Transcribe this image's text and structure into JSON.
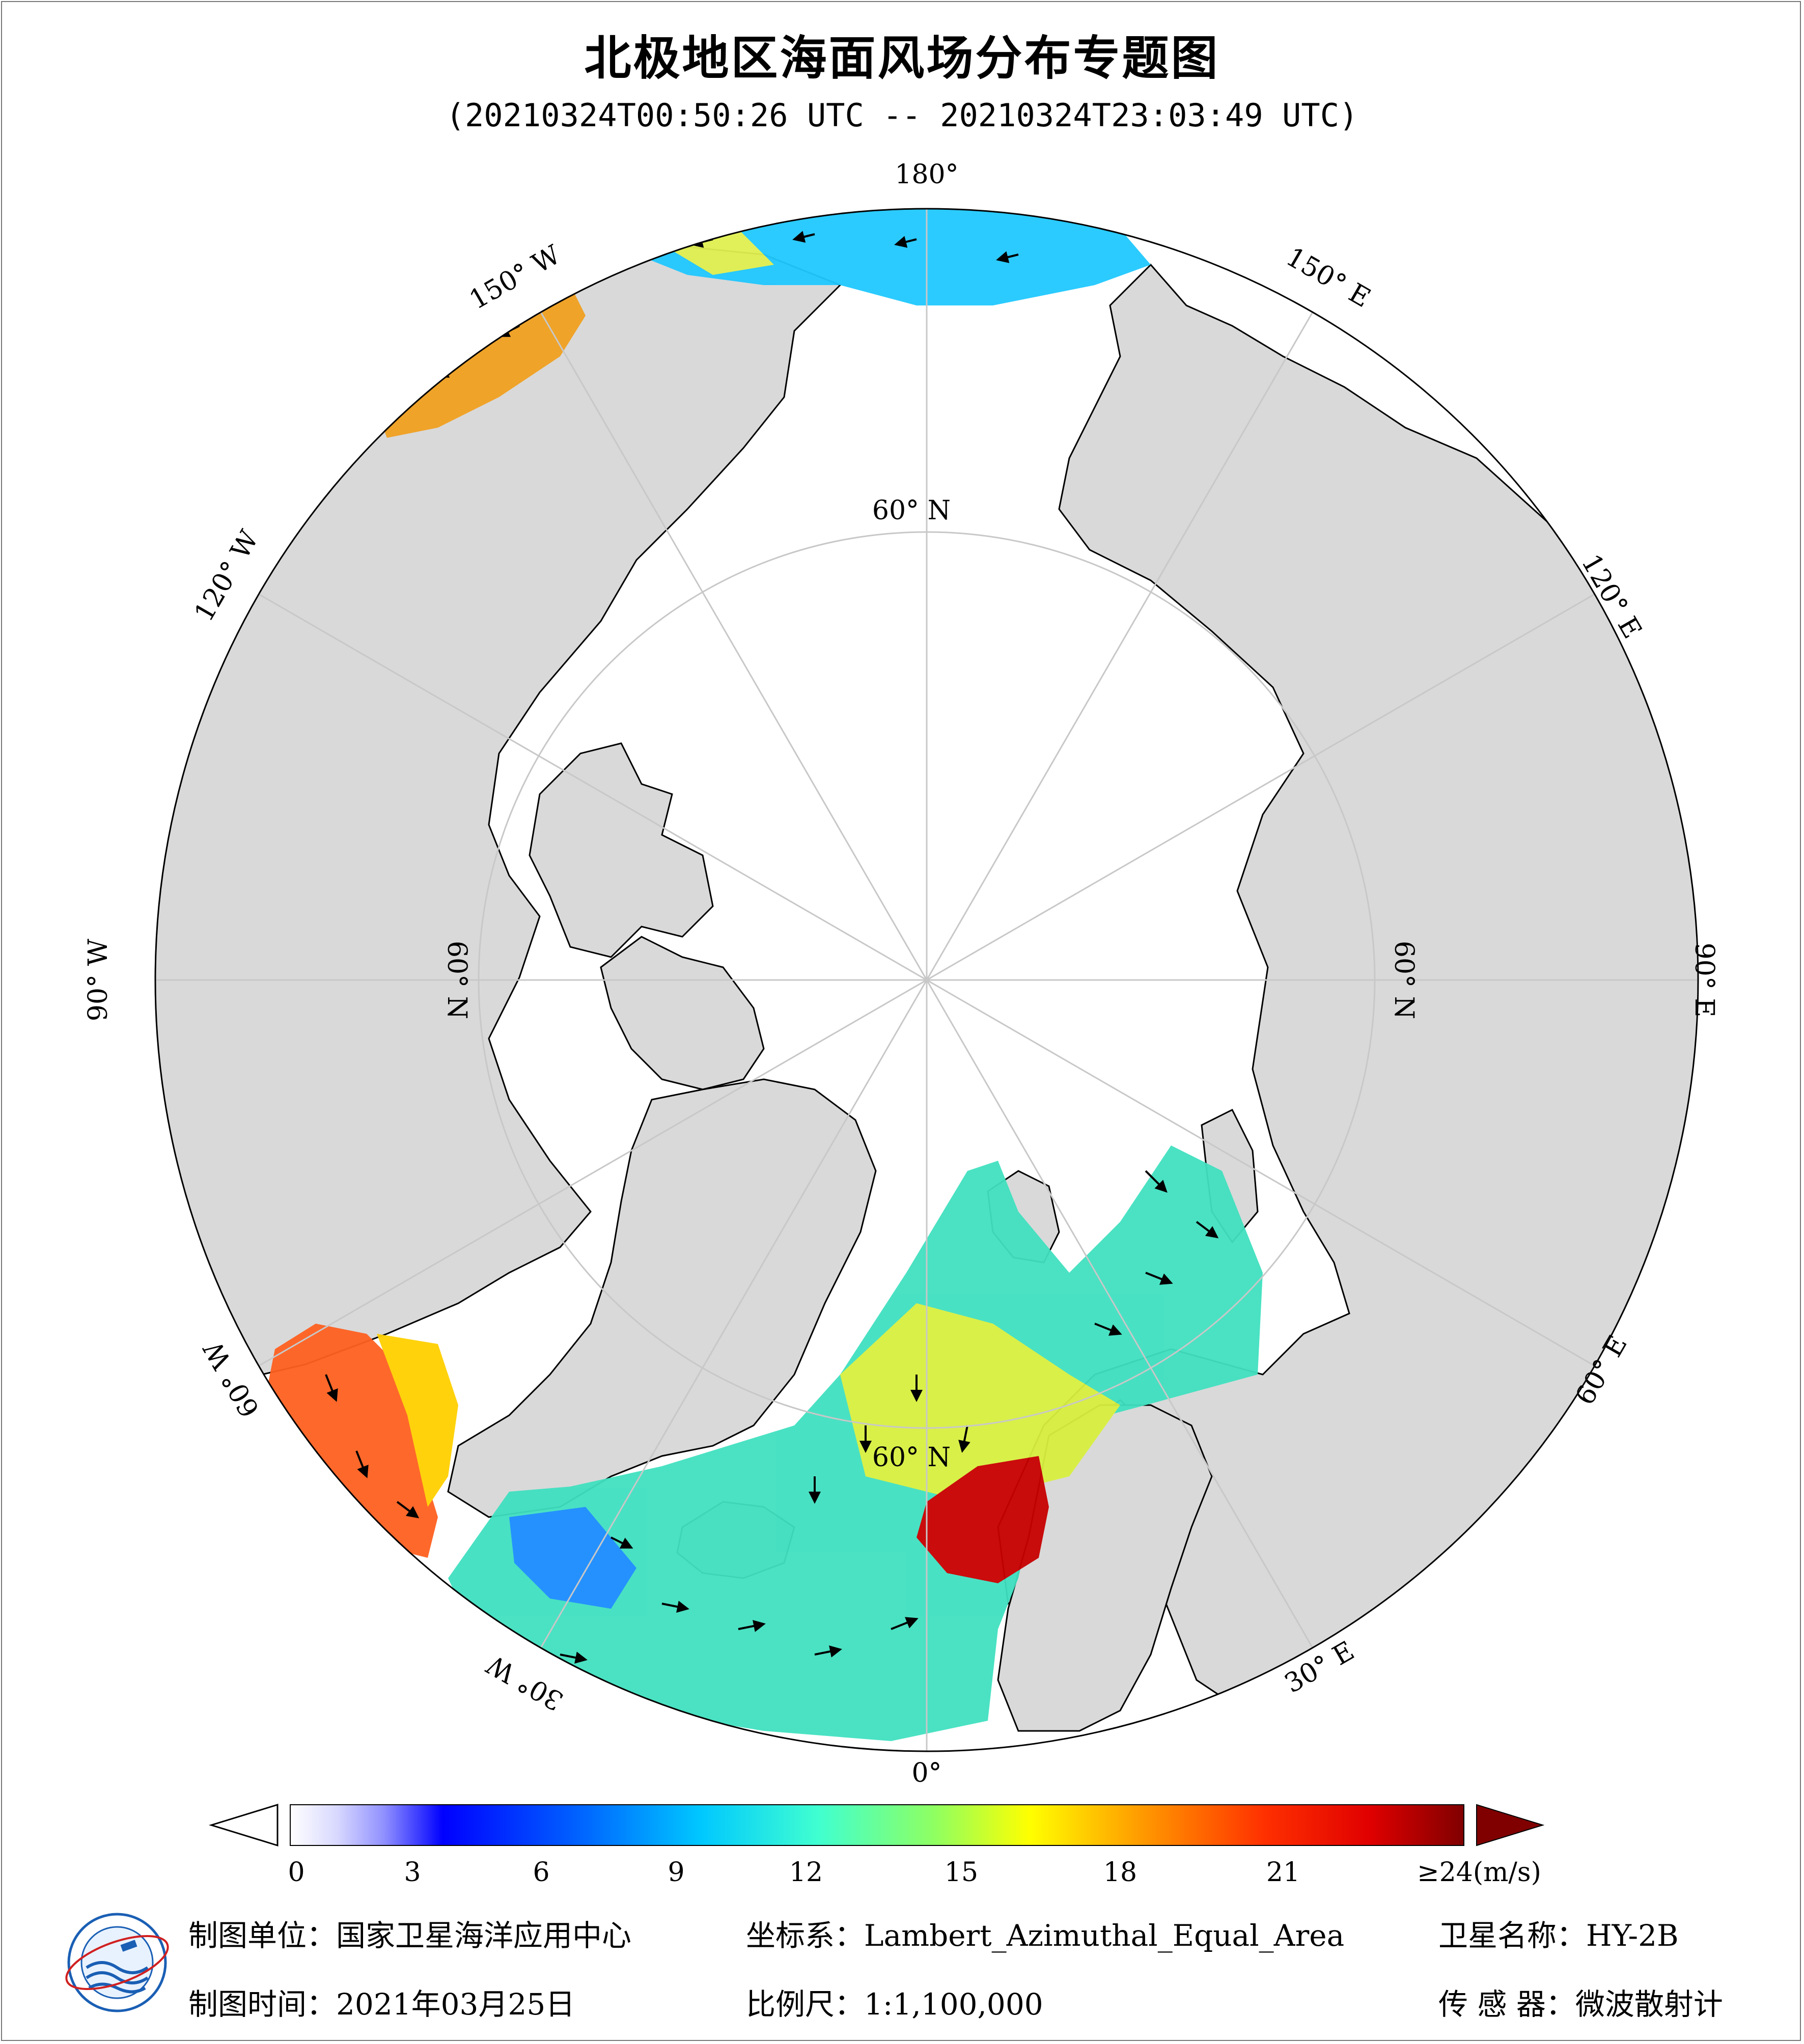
{
  "header": {
    "title": "北极地区海面风场分布专题图",
    "subtitle": "(20210324T00:50:26 UTC -- 20210324T23:03:49 UTC)"
  },
  "map": {
    "projection": "Lambert_Azimuthal_Equal_Area",
    "center": "North Pole",
    "colors": {
      "land": "#d9d9d9",
      "ocean": "#ffffff",
      "graticule": "#c8c8c8",
      "coast": "#000000"
    },
    "longitude_labels": {
      "lon_180": "180°",
      "lon_150e": "150° E",
      "lon_120e": "120° E",
      "lon_90e": "90° E",
      "lon_60e": "60° E",
      "lon_30e": "30° E",
      "lon_0": "0°",
      "lon_30w": "30° W",
      "lon_60w": "60° W",
      "lon_90w": "90° W",
      "lon_120w": "120° W",
      "lon_150w": "150° W"
    },
    "latitude_labels": {
      "lat60_top": "60° N",
      "lat60_left": "60° N",
      "lat60_right": "60° N",
      "lat60_bottom": "60° N"
    }
  },
  "colorbar": {
    "ticks": [
      "0",
      "3",
      "6",
      "9",
      "12",
      "15",
      "18",
      "21"
    ],
    "max_label": "≥24(m/s)",
    "stops": [
      "#ffffff",
      "#d8d8ff",
      "#9090ff",
      "#0000ff",
      "#0066ff",
      "#00c8ff",
      "#40ffd0",
      "#90ff60",
      "#ffff00",
      "#ffa000",
      "#ff3000",
      "#e00000",
      "#800000"
    ]
  },
  "footer": {
    "producer_label": "制图单位：",
    "producer": "国家卫星海洋应用中心",
    "crs_label": "坐标系：",
    "crs": "Lambert_Azimuthal_Equal_Area",
    "satellite_label": "卫星名称：",
    "satellite": "HY-2B",
    "date_label": "制图时间：",
    "date": "2021年03月25日",
    "scale_label": "比例尺：",
    "scale": "1:1,100,000",
    "sensor_label": "传 感 器：",
    "sensor": "微波散射计"
  }
}
